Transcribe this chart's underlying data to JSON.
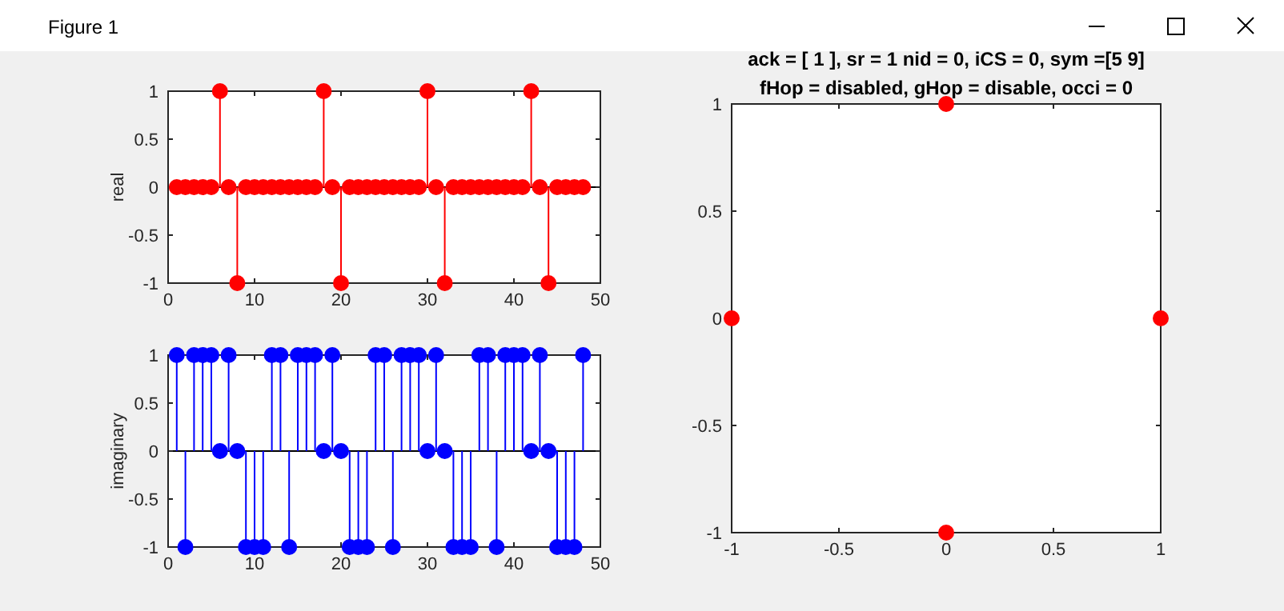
{
  "chart_data": [
    {
      "type": "lollipop",
      "ylabel": "real",
      "annotations": [
        "Figure 1"
      ],
      "marker": "circle",
      "x": [
        1,
        2,
        3,
        4,
        5,
        6,
        7,
        8,
        9,
        10,
        11,
        12,
        13,
        14,
        15,
        16,
        17,
        18,
        19,
        20,
        21,
        22,
        23,
        24,
        25,
        26,
        27,
        28,
        29,
        30,
        31,
        32,
        33,
        34,
        35,
        36,
        37,
        38,
        39,
        40,
        41,
        42,
        43,
        44,
        45,
        46,
        47,
        48
      ],
      "series": [
        {
          "color": "#ff0000",
          "values": [
            0,
            0,
            0,
            0,
            0,
            1,
            0,
            -1,
            0,
            0,
            0,
            0,
            0,
            0,
            0,
            0,
            0,
            1,
            0,
            -1,
            0,
            0,
            0,
            0,
            0,
            0,
            0,
            0,
            0,
            1,
            0,
            -1,
            0,
            0,
            0,
            0,
            0,
            0,
            0,
            0,
            0,
            1,
            0,
            -1,
            0,
            0,
            0,
            0
          ]
        }
      ],
      "xlim": [
        0,
        50
      ],
      "xticks": [
        0,
        10,
        20,
        30,
        40,
        50
      ],
      "ylim": [
        -1,
        1
      ],
      "yticks": [
        -1,
        -0.5,
        0,
        0.5,
        1
      ],
      "ref_lines": [
        {
          "axis": "y",
          "value": 0,
          "color": "#000000"
        }
      ]
    },
    {
      "type": "lollipop",
      "ylabel": "imaginary",
      "marker": "circle",
      "x": [
        1,
        2,
        3,
        4,
        5,
        6,
        7,
        8,
        9,
        10,
        11,
        12,
        13,
        14,
        15,
        16,
        17,
        18,
        19,
        20,
        21,
        22,
        23,
        24,
        25,
        26,
        27,
        28,
        29,
        30,
        31,
        32,
        33,
        34,
        35,
        36,
        37,
        38,
        39,
        40,
        41,
        42,
        43,
        44,
        45,
        46,
        47,
        48
      ],
      "series": [
        {
          "color": "#0000ff",
          "values": [
            1,
            -1,
            1,
            1,
            1,
            0,
            1,
            0,
            -1,
            -1,
            -1,
            1,
            1,
            -1,
            1,
            1,
            1,
            0,
            1,
            0,
            -1,
            -1,
            -1,
            1,
            1,
            -1,
            1,
            1,
            1,
            0,
            1,
            0,
            -1,
            -1,
            -1,
            1,
            1,
            -1,
            1,
            1,
            1,
            0,
            1,
            0,
            -1,
            -1,
            -1,
            1
          ]
        }
      ],
      "xlim": [
        0,
        50
      ],
      "xticks": [
        0,
        10,
        20,
        30,
        40,
        50
      ],
      "ylim": [
        -1,
        1
      ],
      "yticks": [
        -1,
        -0.5,
        0,
        0.5,
        1
      ],
      "ref_lines": [
        {
          "axis": "y",
          "value": 0,
          "color": "#000000"
        }
      ]
    },
    {
      "type": "scatter",
      "title": "ack = [ 1 ], sr = 1 nid = 0, iCS = 0, sym =[5 9]",
      "subtitle": "fHop = disabled, gHop = disable, occi = 0",
      "marker": "circle",
      "x": [
        0,
        -1,
        1,
        0
      ],
      "series": [
        {
          "color": "#ff0000",
          "values": [
            1,
            0,
            0,
            -1
          ]
        }
      ],
      "xlim": [
        -1,
        1
      ],
      "xticks": [
        -1,
        -0.5,
        0,
        0.5,
        1
      ],
      "ylim": [
        -1,
        1
      ],
      "yticks": [
        -1,
        -0.5,
        0,
        0.5,
        1
      ]
    }
  ]
}
